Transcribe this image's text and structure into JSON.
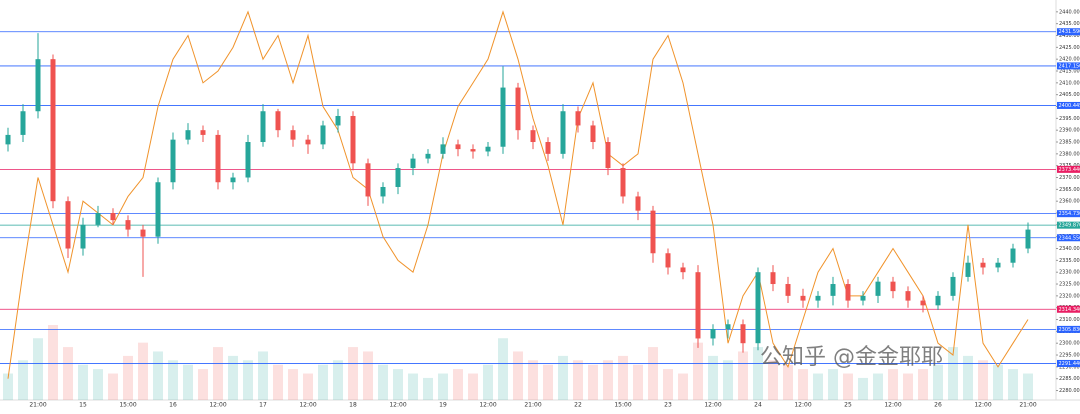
{
  "chart_data": {
    "type": "candlestick",
    "categories": [
      null,
      null,
      "21:00",
      null,
      null,
      "15",
      null,
      null,
      "15:00",
      null,
      null,
      "16",
      null,
      null,
      "12:00",
      null,
      null,
      "17",
      null,
      null,
      "12:00",
      null,
      null,
      "18",
      null,
      null,
      "12:00",
      null,
      null,
      "19",
      null,
      null,
      "12:00",
      null,
      null,
      "21:00",
      null,
      null,
      "22",
      null,
      null,
      "15:00",
      null,
      null,
      "23",
      null,
      null,
      "12:00",
      null,
      null,
      "24",
      null,
      null,
      "12:00",
      null,
      null,
      "25",
      null,
      null,
      "12:00",
      null,
      null,
      "26",
      null,
      null,
      "12:00",
      null,
      null,
      "21:00"
    ],
    "open": [
      2384,
      2388,
      2398,
      2420,
      2360,
      2340,
      2350,
      2355,
      2352,
      2348,
      2345,
      2368,
      2386,
      2390,
      2388,
      2368,
      2370,
      2385,
      2398,
      2390,
      2386,
      2384,
      2392,
      2396,
      2376,
      2362,
      2366,
      2374,
      2378,
      2380,
      2384,
      2382,
      2381,
      2383,
      2408,
      2390,
      2385,
      2380,
      2398,
      2392,
      2385,
      2374,
      2362,
      2356,
      2338,
      2332,
      2330,
      2302,
      2306,
      2308,
      2300,
      2330,
      2325,
      2320,
      2318,
      2320,
      2325,
      2318,
      2320,
      2326,
      2322,
      2318,
      2316,
      2320,
      2328,
      2334,
      2332,
      2334,
      2340
    ],
    "high": [
      2391,
      2401,
      2431,
      2422,
      2362,
      2353,
      2358,
      2357,
      2354,
      2350,
      2370,
      2389,
      2393,
      2392,
      2390,
      2372,
      2388,
      2401,
      2399,
      2392,
      2388,
      2394,
      2399,
      2398,
      2378,
      2368,
      2376,
      2380,
      2382,
      2387,
      2386,
      2384,
      2385,
      2417,
      2410,
      2392,
      2387,
      2401,
      2400,
      2394,
      2387,
      2376,
      2364,
      2358,
      2340,
      2334,
      2333,
      2308,
      2310,
      2310,
      2332,
      2333,
      2328,
      2323,
      2322,
      2328,
      2327,
      2322,
      2328,
      2328,
      2324,
      2320,
      2322,
      2330,
      2337,
      2336,
      2336,
      2342,
      2351
    ],
    "low": [
      2381,
      2385,
      2395,
      2357,
      2336,
      2337,
      2349,
      2350,
      2345,
      2328,
      2342,
      2365,
      2384,
      2385,
      2365,
      2365,
      2368,
      2383,
      2387,
      2383,
      2380,
      2382,
      2389,
      2373,
      2358,
      2359,
      2363,
      2371,
      2376,
      2378,
      2379,
      2378,
      2379,
      2380,
      2386,
      2382,
      2377,
      2378,
      2389,
      2382,
      2371,
      2359,
      2352,
      2334,
      2329,
      2327,
      2298,
      2299,
      2302,
      2296,
      2297,
      2322,
      2317,
      2315,
      2315,
      2316,
      2315,
      2316,
      2317,
      2319,
      2315,
      2313,
      2314,
      2318,
      2326,
      2329,
      2330,
      2332,
      2338
    ],
    "close": [
      2388,
      2398,
      2420,
      2360,
      2340,
      2350,
      2355,
      2352,
      2348,
      2345,
      2368,
      2386,
      2390,
      2388,
      2368,
      2370,
      2385,
      2398,
      2390,
      2386,
      2384,
      2392,
      2396,
      2376,
      2362,
      2366,
      2374,
      2378,
      2380,
      2384,
      2382,
      2381,
      2383,
      2408,
      2390,
      2385,
      2380,
      2398,
      2392,
      2385,
      2374,
      2362,
      2356,
      2338,
      2332,
      2330,
      2302,
      2306,
      2308,
      2300,
      2330,
      2325,
      2320,
      2318,
      2320,
      2325,
      2318,
      2320,
      2326,
      2322,
      2318,
      2316,
      2320,
      2328,
      2334,
      2332,
      2334,
      2340,
      2348
    ],
    "volume": [
      30,
      45,
      70,
      85,
      60,
      40,
      35,
      30,
      50,
      65,
      55,
      45,
      40,
      35,
      60,
      50,
      45,
      55,
      40,
      35,
      30,
      40,
      45,
      60,
      55,
      40,
      35,
      30,
      25,
      30,
      35,
      30,
      40,
      70,
      55,
      45,
      40,
      50,
      45,
      40,
      45,
      50,
      40,
      60,
      35,
      30,
      65,
      50,
      45,
      55,
      60,
      45,
      40,
      35,
      30,
      35,
      30,
      25,
      30,
      35,
      30,
      35,
      40,
      60,
      50,
      45,
      40,
      35,
      30
    ],
    "up_color": "#26a69a",
    "down_color": "#ef5350",
    "indicator": {
      "color": "#f0932b",
      "values": [
        2285,
        2330,
        2370,
        2350,
        2330,
        2360,
        2355,
        2350,
        2362,
        2370,
        2400,
        2420,
        2430,
        2410,
        2415,
        2425,
        2440,
        2420,
        2430,
        2410,
        2430,
        2400,
        2390,
        2370,
        2365,
        2345,
        2335,
        2330,
        2350,
        2380,
        2400,
        2410,
        2420,
        2440,
        2420,
        2395,
        2375,
        2350,
        2395,
        2410,
        2380,
        2375,
        2380,
        2420,
        2430,
        2410,
        2380,
        2350,
        2300,
        2320,
        2330,
        2300,
        2290,
        2310,
        2330,
        2340,
        2320,
        2320,
        2330,
        2340,
        2330,
        2320,
        2300,
        2295,
        2350,
        2300,
        2290,
        2300,
        2310
      ]
    },
    "levels": [
      {
        "value": 2431.59,
        "label": "2431.590",
        "color": "#2962ff"
      },
      {
        "value": 2417.15,
        "label": "2417.150",
        "color": "#2962ff"
      },
      {
        "value": 2400.445,
        "label": "2400.445",
        "color": "#2962ff"
      },
      {
        "value": 2373.446,
        "label": "2373.446",
        "color": "#e91e63"
      },
      {
        "value": 2354.73,
        "label": "2354.730",
        "color": "#2962ff"
      },
      {
        "value": 2349.87,
        "label": "2349.870",
        "color": "#26a69a"
      },
      {
        "value": 2344.55,
        "label": "2344.550",
        "color": "#2962ff"
      },
      {
        "value": 2314.34,
        "label": "2314.340",
        "color": "#e91e63"
      },
      {
        "value": 2305.83,
        "label": "2305.830",
        "color": "#2962ff"
      },
      {
        "value": 2291.44,
        "label": "2291.440",
        "color": "#2962ff"
      }
    ],
    "ylim": [
      2276,
      2445
    ],
    "yticks": [
      {
        "value": 2440,
        "label": "2440.000"
      },
      {
        "value": 2435,
        "label": "2435.000"
      },
      {
        "value": 2430,
        "label": "2430.000"
      },
      {
        "value": 2425,
        "label": "2425.000"
      },
      {
        "value": 2420,
        "label": "2420.000"
      },
      {
        "value": 2415,
        "label": "2415.000"
      },
      {
        "value": 2410,
        "label": "2410.000"
      },
      {
        "value": 2405,
        "label": "2405.000"
      },
      {
        "value": 2400,
        "label": "2400.000"
      },
      {
        "value": 2395,
        "label": "2395.000"
      },
      {
        "value": 2390,
        "label": "2390.000"
      },
      {
        "value": 2385,
        "label": "2385.000"
      },
      {
        "value": 2380,
        "label": "2380.000"
      },
      {
        "value": 2375,
        "label": "2375.000"
      },
      {
        "value": 2370,
        "label": "2370.000"
      },
      {
        "value": 2365,
        "label": "2365.000"
      },
      {
        "value": 2360,
        "label": "2360.000"
      },
      {
        "value": 2355,
        "label": "2355.000"
      },
      {
        "value": 2350,
        "label": "2350.000"
      },
      {
        "value": 2345,
        "label": "2345.000"
      },
      {
        "value": 2340,
        "label": "2340.000"
      },
      {
        "value": 2335,
        "label": "2335.000"
      },
      {
        "value": 2330,
        "label": "2330.000"
      },
      {
        "value": 2325,
        "label": "2325.000"
      },
      {
        "value": 2320,
        "label": "2320.000"
      },
      {
        "value": 2315,
        "label": "2315.000"
      },
      {
        "value": 2310,
        "label": "2310.000"
      },
      {
        "value": 2305,
        "label": "2305.000"
      },
      {
        "value": 2300,
        "label": "2300.000"
      },
      {
        "value": 2295,
        "label": "2295.000"
      },
      {
        "value": 2290,
        "label": "2290.000"
      },
      {
        "value": 2285,
        "label": "2285.000"
      },
      {
        "value": 2280,
        "label": "2280.000"
      }
    ],
    "watermark": "公知乎 @金金耶耶"
  }
}
